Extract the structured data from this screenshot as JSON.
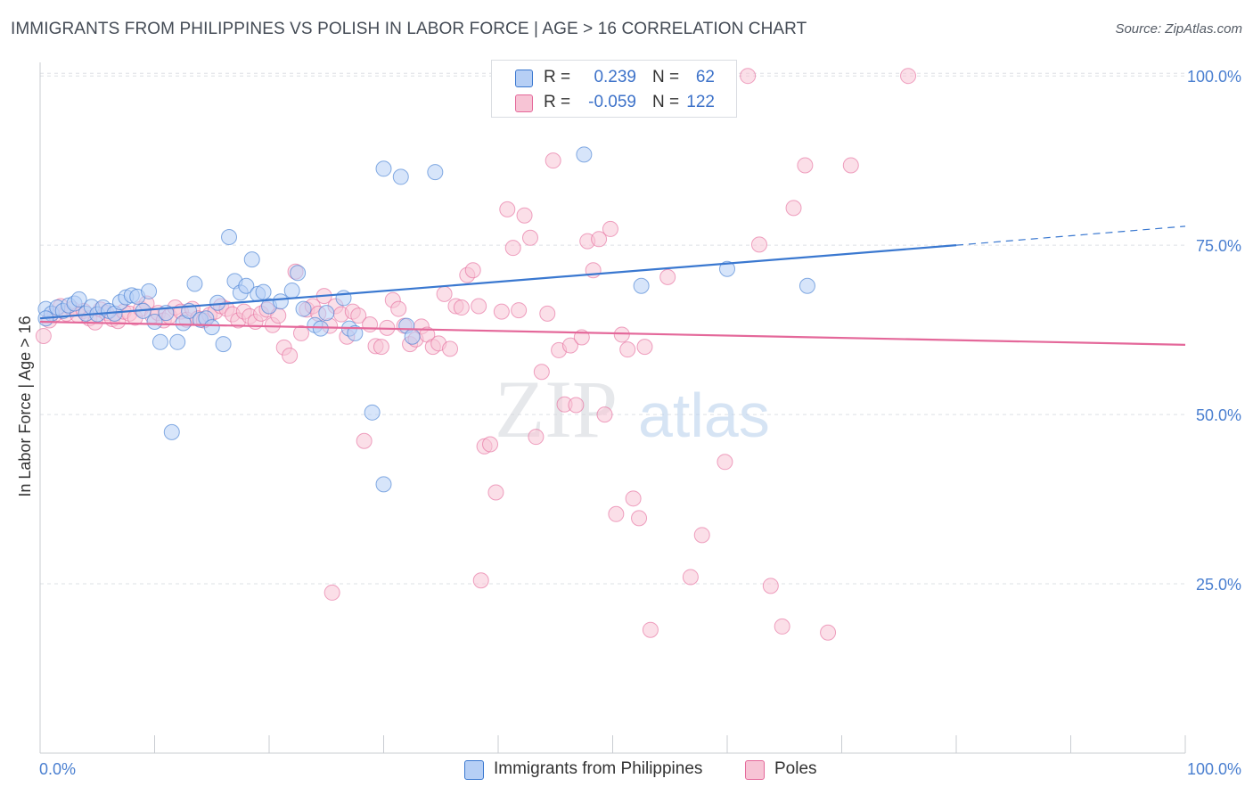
{
  "title": "IMMIGRANTS FROM PHILIPPINES VS POLISH IN LABOR FORCE | AGE > 16 CORRELATION CHART",
  "source": "Source: ZipAtlas.com",
  "watermark": {
    "zip": "ZIP",
    "atlas": "atlas"
  },
  "colors": {
    "blue": "#3a78d0",
    "blue_fill": "#b6cff5",
    "pink": "#e4689a",
    "pink_fill": "#f7c4d5",
    "tick_text": "#4a7fd0",
    "grid": "#dde0e5"
  },
  "legend": {
    "rows": [
      {
        "r_label": "R =",
        "r_value": "0.239",
        "n_label": "N =",
        "n_value": "62"
      },
      {
        "r_label": "R =",
        "r_value": "-0.059",
        "n_label": "N =",
        "n_value": "122"
      }
    ]
  },
  "bottom_legend": [
    {
      "label": "Immigrants from Philippines"
    },
    {
      "label": "Poles"
    }
  ],
  "chart_data": {
    "type": "scatter",
    "title": "IMMIGRANTS FROM PHILIPPINES VS POLISH IN LABOR FORCE | AGE > 16 CORRELATION CHART",
    "xlabel": "",
    "ylabel": "In Labor Force | Age > 16",
    "xlim": [
      0,
      100
    ],
    "ylim": [
      0,
      102
    ],
    "x_tick_labels": [
      "0.0%",
      "100.0%"
    ],
    "y_ticks": [
      25,
      50,
      75,
      100
    ],
    "y_tick_labels": [
      "25.0%",
      "50.0%",
      "75.0%",
      "100.0%"
    ],
    "grid": true,
    "series": [
      {
        "name": "Immigrants from Philippines",
        "trendline": {
          "x": [
            0,
            80
          ],
          "y": [
            64.2,
            75.0
          ],
          "dashed_extension_to": [
            100,
            77.8
          ]
        },
        "points": [
          [
            0.5,
            65.6
          ],
          [
            1.0,
            64.9
          ],
          [
            1.5,
            65.8
          ],
          [
            2.0,
            65.3
          ],
          [
            2.5,
            66.1
          ],
          [
            3.0,
            66.4
          ],
          [
            3.4,
            67.0
          ],
          [
            4.0,
            64.9
          ],
          [
            4.5,
            65.9
          ],
          [
            5.0,
            64.8
          ],
          [
            5.5,
            65.8
          ],
          [
            6.0,
            65.3
          ],
          [
            6.5,
            64.9
          ],
          [
            7.0,
            66.6
          ],
          [
            7.5,
            67.3
          ],
          [
            8.0,
            67.6
          ],
          [
            8.5,
            67.4
          ],
          [
            9.0,
            65.3
          ],
          [
            9.5,
            68.2
          ],
          [
            10.0,
            63.7
          ],
          [
            10.5,
            60.7
          ],
          [
            11.0,
            65.0
          ],
          [
            11.5,
            47.4
          ],
          [
            12.0,
            60.7
          ],
          [
            12.5,
            63.5
          ],
          [
            13.0,
            65.3
          ],
          [
            13.5,
            69.3
          ],
          [
            14.0,
            64.0
          ],
          [
            14.5,
            64.2
          ],
          [
            15.0,
            62.9
          ],
          [
            15.5,
            66.5
          ],
          [
            16.0,
            60.4
          ],
          [
            16.5,
            76.2
          ],
          [
            17.0,
            69.7
          ],
          [
            17.5,
            68.0
          ],
          [
            18.0,
            69.0
          ],
          [
            18.5,
            72.9
          ],
          [
            19.0,
            67.8
          ],
          [
            19.5,
            68.1
          ],
          [
            20.0,
            66.0
          ],
          [
            21.0,
            66.7
          ],
          [
            22.0,
            68.3
          ],
          [
            22.5,
            70.9
          ],
          [
            23.0,
            65.6
          ],
          [
            24.0,
            63.2
          ],
          [
            24.5,
            62.7
          ],
          [
            25.0,
            65.0
          ],
          [
            26.5,
            67.2
          ],
          [
            27.0,
            62.7
          ],
          [
            27.5,
            62.0
          ],
          [
            29.0,
            50.3
          ],
          [
            30.0,
            39.7
          ],
          [
            30.0,
            86.3
          ],
          [
            31.5,
            85.1
          ],
          [
            32.0,
            63.1
          ],
          [
            32.5,
            61.5
          ],
          [
            34.5,
            85.8
          ],
          [
            47.5,
            88.4
          ],
          [
            52.5,
            69.0
          ],
          [
            60.0,
            71.5
          ],
          [
            67.0,
            69.0
          ],
          [
            0.5,
            64.2
          ]
        ]
      },
      {
        "name": "Poles",
        "trendline": {
          "x": [
            0,
            100
          ],
          "y": [
            63.7,
            60.3
          ]
        },
        "points": [
          [
            0.3,
            61.6
          ],
          [
            0.8,
            63.9
          ],
          [
            1.3,
            64.8
          ],
          [
            1.8,
            66.0
          ],
          [
            2.3,
            64.9
          ],
          [
            2.8,
            65.6
          ],
          [
            3.3,
            64.7
          ],
          [
            3.8,
            65.3
          ],
          [
            4.3,
            64.2
          ],
          [
            4.8,
            63.6
          ],
          [
            5.3,
            65.5
          ],
          [
            5.8,
            65.0
          ],
          [
            6.3,
            64.1
          ],
          [
            6.8,
            63.8
          ],
          [
            7.3,
            65.2
          ],
          [
            7.8,
            64.9
          ],
          [
            8.3,
            64.3
          ],
          [
            8.8,
            65.6
          ],
          [
            9.3,
            66.4
          ],
          [
            9.8,
            64.6
          ],
          [
            10.3,
            65.0
          ],
          [
            10.8,
            63.9
          ],
          [
            11.3,
            64.5
          ],
          [
            11.8,
            65.8
          ],
          [
            12.3,
            65.2
          ],
          [
            12.8,
            64.0
          ],
          [
            13.3,
            65.6
          ],
          [
            13.8,
            64.2
          ],
          [
            14.3,
            63.9
          ],
          [
            14.8,
            64.7
          ],
          [
            15.3,
            65.2
          ],
          [
            15.8,
            66.0
          ],
          [
            16.3,
            65.6
          ],
          [
            16.8,
            64.8
          ],
          [
            17.3,
            63.9
          ],
          [
            17.8,
            65.2
          ],
          [
            18.3,
            64.5
          ],
          [
            18.8,
            63.7
          ],
          [
            19.3,
            64.9
          ],
          [
            19.8,
            65.5
          ],
          [
            20.3,
            63.2
          ],
          [
            20.8,
            64.6
          ],
          [
            21.3,
            59.9
          ],
          [
            21.8,
            58.7
          ],
          [
            22.3,
            71.1
          ],
          [
            22.8,
            62.0
          ],
          [
            23.3,
            65.5
          ],
          [
            23.8,
            66.0
          ],
          [
            24.3,
            64.9
          ],
          [
            24.8,
            67.5
          ],
          [
            25.3,
            63.1
          ],
          [
            25.8,
            66.0
          ],
          [
            26.3,
            64.8
          ],
          [
            26.8,
            61.5
          ],
          [
            27.3,
            65.2
          ],
          [
            27.8,
            64.6
          ],
          [
            28.3,
            46.1
          ],
          [
            28.8,
            63.3
          ],
          [
            29.3,
            60.1
          ],
          [
            29.8,
            60.0
          ],
          [
            30.3,
            62.8
          ],
          [
            30.8,
            66.9
          ],
          [
            31.3,
            65.6
          ],
          [
            31.8,
            63.1
          ],
          [
            32.3,
            60.4
          ],
          [
            32.8,
            61.1
          ],
          [
            33.3,
            63.0
          ],
          [
            33.8,
            61.8
          ],
          [
            34.3,
            60.0
          ],
          [
            34.8,
            60.5
          ],
          [
            35.3,
            67.8
          ],
          [
            35.8,
            59.7
          ],
          [
            36.3,
            66.0
          ],
          [
            36.8,
            65.8
          ],
          [
            37.3,
            70.6
          ],
          [
            37.8,
            71.3
          ],
          [
            38.3,
            66.0
          ],
          [
            38.8,
            45.3
          ],
          [
            39.3,
            45.6
          ],
          [
            39.8,
            38.5
          ],
          [
            40.3,
            65.2
          ],
          [
            40.8,
            80.3
          ],
          [
            41.3,
            74.6
          ],
          [
            41.8,
            65.4
          ],
          [
            42.3,
            79.4
          ],
          [
            42.8,
            76.1
          ],
          [
            43.3,
            46.7
          ],
          [
            43.8,
            56.3
          ],
          [
            44.3,
            64.9
          ],
          [
            44.8,
            87.5
          ],
          [
            45.3,
            59.5
          ],
          [
            45.8,
            51.5
          ],
          [
            46.3,
            60.2
          ],
          [
            46.8,
            51.4
          ],
          [
            47.3,
            61.4
          ],
          [
            47.8,
            75.6
          ],
          [
            48.3,
            71.3
          ],
          [
            48.8,
            75.9
          ],
          [
            49.3,
            50.0
          ],
          [
            49.8,
            77.4
          ],
          [
            50.3,
            35.3
          ],
          [
            50.8,
            61.8
          ],
          [
            51.3,
            59.6
          ],
          [
            51.8,
            37.6
          ],
          [
            52.3,
            34.7
          ],
          [
            52.8,
            60.0
          ],
          [
            53.3,
            18.2
          ],
          [
            54.8,
            70.3
          ],
          [
            56.8,
            26.0
          ],
          [
            57.8,
            32.2
          ],
          [
            59.8,
            43.0
          ],
          [
            61.8,
            100.0
          ],
          [
            62.8,
            75.1
          ],
          [
            63.8,
            24.7
          ],
          [
            64.8,
            18.7
          ],
          [
            65.8,
            80.5
          ],
          [
            66.8,
            86.8
          ],
          [
            68.8,
            17.8
          ],
          [
            70.8,
            86.8
          ],
          [
            75.8,
            100.0
          ],
          [
            25.5,
            23.7
          ],
          [
            38.5,
            25.5
          ]
        ]
      }
    ]
  }
}
